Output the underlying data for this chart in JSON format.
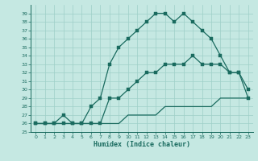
{
  "xlabel": "Humidex (Indice chaleur)",
  "bg_color": "#c5e8e2",
  "grid_color": "#9ecfc7",
  "line_color": "#1a6b5f",
  "hours": [
    0,
    1,
    2,
    3,
    4,
    5,
    6,
    7,
    8,
    9,
    10,
    11,
    12,
    13,
    14,
    15,
    16,
    17,
    18,
    19,
    20,
    21,
    22,
    23
  ],
  "line_jagged": [
    26,
    26,
    26,
    27,
    26,
    26,
    28,
    29,
    33,
    35,
    36,
    37,
    38,
    39,
    39,
    38,
    39,
    38,
    37,
    36,
    34,
    32,
    32,
    29
  ],
  "line_upper": [
    26,
    26,
    26,
    26,
    26,
    26,
    26,
    26,
    29,
    29,
    30,
    31,
    32,
    32,
    33,
    33,
    33,
    34,
    33,
    33,
    33,
    32,
    32,
    30
  ],
  "line_lower": [
    26,
    26,
    26,
    26,
    26,
    26,
    26,
    26,
    26,
    26,
    27,
    27,
    27,
    27,
    28,
    28,
    28,
    28,
    28,
    28,
    29,
    29,
    29,
    29
  ],
  "ylim_min": 25,
  "ylim_max": 40,
  "xlim_min": -0.5,
  "xlim_max": 23.5,
  "yticks": [
    25,
    26,
    27,
    28,
    29,
    30,
    31,
    32,
    33,
    34,
    35,
    36,
    37,
    38,
    39
  ],
  "xticks": [
    0,
    1,
    2,
    3,
    4,
    5,
    6,
    7,
    8,
    9,
    10,
    11,
    12,
    13,
    14,
    15,
    16,
    17,
    18,
    19,
    20,
    21,
    22,
    23
  ],
  "markersize": 2.2,
  "linewidth": 0.9
}
